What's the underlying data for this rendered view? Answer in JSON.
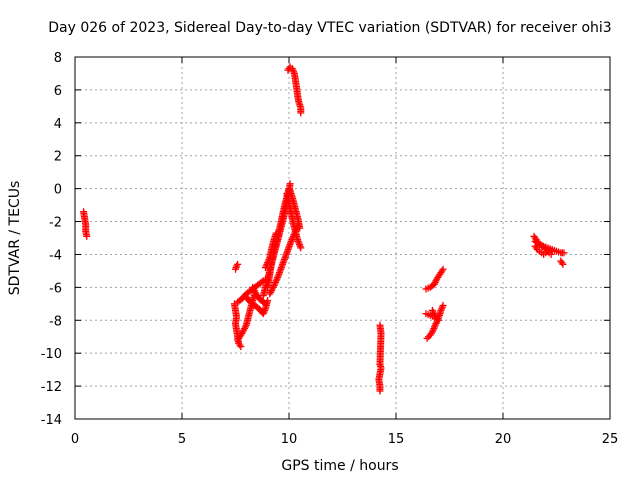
{
  "chart_data": {
    "type": "scatter",
    "title": "Day 026 of 2023, Sidereal Day-to-day VTEC variation (SDTVAR) for receiver ohi3",
    "xlabel": "GPS time / hours",
    "ylabel": "SDTVAR / TECUs",
    "xlim": [
      0,
      25
    ],
    "ylim": [
      -14,
      8
    ],
    "xticks": [
      0,
      5,
      10,
      15,
      20,
      25
    ],
    "yticks": [
      -14,
      -12,
      -10,
      -8,
      -6,
      -4,
      -2,
      0,
      2,
      4,
      6,
      8
    ],
    "grid": true,
    "marker": "+",
    "series_color": "#ff0000",
    "series": [
      {
        "name": "SDTVAR",
        "segments": [
          [
            [
              0.4,
              -1.4
            ],
            [
              0.45,
              -1.8
            ],
            [
              0.5,
              -2.2
            ],
            [
              0.5,
              -2.6
            ],
            [
              0.55,
              -2.9
            ]
          ],
          [
            [
              7.45,
              -7.0
            ],
            [
              7.5,
              -7.4
            ],
            [
              7.55,
              -7.8
            ],
            [
              7.5,
              -8.2
            ],
            [
              7.55,
              -8.6
            ],
            [
              7.6,
              -9.0
            ],
            [
              7.65,
              -9.4
            ],
            [
              7.75,
              -9.6
            ]
          ],
          [
            [
              7.5,
              -4.9
            ],
            [
              7.55,
              -4.7
            ],
            [
              7.6,
              -4.6
            ]
          ],
          [
            [
              7.6,
              -6.9
            ],
            [
              7.8,
              -6.7
            ],
            [
              8.0,
              -6.4
            ],
            [
              8.2,
              -6.2
            ],
            [
              8.4,
              -6.0
            ],
            [
              8.6,
              -5.8
            ],
            [
              8.8,
              -5.6
            ],
            [
              9.0,
              -5.5
            ]
          ],
          [
            [
              7.6,
              -9.2
            ],
            [
              7.8,
              -8.8
            ],
            [
              8.0,
              -8.3
            ],
            [
              8.1,
              -7.8
            ],
            [
              8.2,
              -7.3
            ],
            [
              8.3,
              -6.8
            ],
            [
              8.4,
              -6.4
            ]
          ],
          [
            [
              8.0,
              -6.6
            ],
            [
              8.2,
              -6.9
            ],
            [
              8.4,
              -7.1
            ],
            [
              8.6,
              -7.3
            ],
            [
              8.8,
              -7.6
            ],
            [
              8.9,
              -7.3
            ],
            [
              9.0,
              -6.8
            ]
          ],
          [
            [
              8.3,
              -6.0
            ],
            [
              8.5,
              -6.5
            ],
            [
              8.7,
              -6.8
            ],
            [
              8.9,
              -7.0
            ]
          ],
          [
            [
              8.8,
              -6.5
            ],
            [
              8.9,
              -6.0
            ],
            [
              9.0,
              -5.5
            ],
            [
              9.1,
              -5.0
            ],
            [
              9.2,
              -4.5
            ],
            [
              9.3,
              -4.0
            ],
            [
              9.4,
              -3.5
            ],
            [
              9.5,
              -3.0
            ],
            [
              9.6,
              -2.5
            ],
            [
              9.7,
              -2.0
            ],
            [
              9.8,
              -1.5
            ],
            [
              9.9,
              -0.8
            ],
            [
              10.0,
              -0.3
            ],
            [
              10.05,
              0.3
            ]
          ],
          [
            [
              9.0,
              -6.0
            ],
            [
              9.1,
              -5.2
            ],
            [
              9.2,
              -4.4
            ],
            [
              9.3,
              -3.8
            ],
            [
              9.4,
              -3.3
            ],
            [
              9.5,
              -2.8
            ],
            [
              9.6,
              -2.2
            ],
            [
              9.7,
              -1.6
            ],
            [
              9.8,
              -1.0
            ],
            [
              9.9,
              -0.5
            ],
            [
              10.0,
              0.0
            ]
          ],
          [
            [
              9.1,
              -6.4
            ],
            [
              9.3,
              -5.9
            ],
            [
              9.5,
              -5.3
            ],
            [
              9.7,
              -4.6
            ],
            [
              9.9,
              -3.9
            ],
            [
              10.1,
              -3.2
            ],
            [
              10.3,
              -2.6
            ],
            [
              10.4,
              -2.3
            ]
          ],
          [
            [
              8.9,
              -4.8
            ],
            [
              9.1,
              -4.2
            ],
            [
              9.2,
              -3.6
            ],
            [
              9.3,
              -3.1
            ],
            [
              9.4,
              -2.7
            ]
          ],
          [
            [
              10.05,
              -0.1
            ],
            [
              10.15,
              -0.5
            ],
            [
              10.25,
              -1.0
            ],
            [
              10.35,
              -1.5
            ],
            [
              10.45,
              -2.0
            ],
            [
              10.5,
              -2.4
            ]
          ],
          [
            [
              9.9,
              -0.3
            ],
            [
              10.0,
              -0.9
            ],
            [
              10.1,
              -1.5
            ],
            [
              10.2,
              -2.1
            ],
            [
              10.3,
              -2.6
            ],
            [
              10.4,
              -3.1
            ],
            [
              10.55,
              -3.6
            ]
          ],
          [
            [
              9.95,
              7.2
            ],
            [
              10.05,
              7.4
            ],
            [
              10.15,
              7.3
            ],
            [
              10.25,
              7.0
            ],
            [
              10.3,
              6.6
            ],
            [
              10.35,
              6.2
            ],
            [
              10.4,
              5.7
            ],
            [
              10.45,
              5.3
            ],
            [
              10.55,
              4.9
            ],
            [
              10.55,
              4.6
            ]
          ],
          [
            [
              14.25,
              -8.3
            ],
            [
              14.3,
              -8.8
            ],
            [
              14.25,
              -10.7
            ],
            [
              14.3,
              -10.9
            ],
            [
              14.2,
              -11.6
            ],
            [
              14.25,
              -12.0
            ],
            [
              14.25,
              -12.3
            ]
          ],
          [
            [
              16.4,
              -6.1
            ],
            [
              16.6,
              -6.0
            ],
            [
              16.8,
              -5.8
            ],
            [
              16.9,
              -5.5
            ],
            [
              17.0,
              -5.3
            ],
            [
              17.1,
              -5.1
            ],
            [
              17.2,
              -4.9
            ]
          ],
          [
            [
              16.4,
              -7.6
            ],
            [
              16.6,
              -7.7
            ],
            [
              16.8,
              -7.8
            ],
            [
              16.9,
              -7.9
            ]
          ],
          [
            [
              16.45,
              -9.1
            ],
            [
              16.6,
              -8.9
            ],
            [
              16.7,
              -8.7
            ],
            [
              16.8,
              -8.4
            ],
            [
              16.9,
              -8.1
            ],
            [
              17.0,
              -7.8
            ],
            [
              17.1,
              -7.4
            ],
            [
              17.2,
              -7.1
            ]
          ],
          [
            [
              16.7,
              -7.4
            ],
            [
              16.8,
              -7.7
            ],
            [
              16.9,
              -7.9
            ],
            [
              17.0,
              -8.0
            ]
          ],
          [
            [
              21.45,
              -2.9
            ],
            [
              21.55,
              -3.1
            ],
            [
              21.65,
              -3.3
            ],
            [
              21.75,
              -3.4
            ],
            [
              21.85,
              -3.5
            ],
            [
              21.95,
              -3.6
            ],
            [
              22.05,
              -3.8
            ],
            [
              22.15,
              -3.9
            ],
            [
              22.25,
              -4.0
            ]
          ],
          [
            [
              21.5,
              -3.5
            ],
            [
              21.6,
              -3.7
            ],
            [
              21.7,
              -3.8
            ],
            [
              21.8,
              -3.9
            ],
            [
              21.9,
              -4.0
            ],
            [
              22.0,
              -3.9
            ],
            [
              22.1,
              -3.8
            ],
            [
              22.2,
              -3.7
            ],
            [
              22.3,
              -3.8
            ]
          ],
          [
            [
              21.5,
              -3.2
            ],
            [
              21.7,
              -3.4
            ],
            [
              21.9,
              -3.5
            ],
            [
              22.1,
              -3.6
            ],
            [
              22.3,
              -3.7
            ],
            [
              22.5,
              -3.8
            ],
            [
              22.7,
              -3.9
            ],
            [
              22.85,
              -3.9
            ]
          ],
          [
            [
              22.7,
              -4.4
            ],
            [
              22.8,
              -4.6
            ]
          ]
        ]
      }
    ]
  }
}
